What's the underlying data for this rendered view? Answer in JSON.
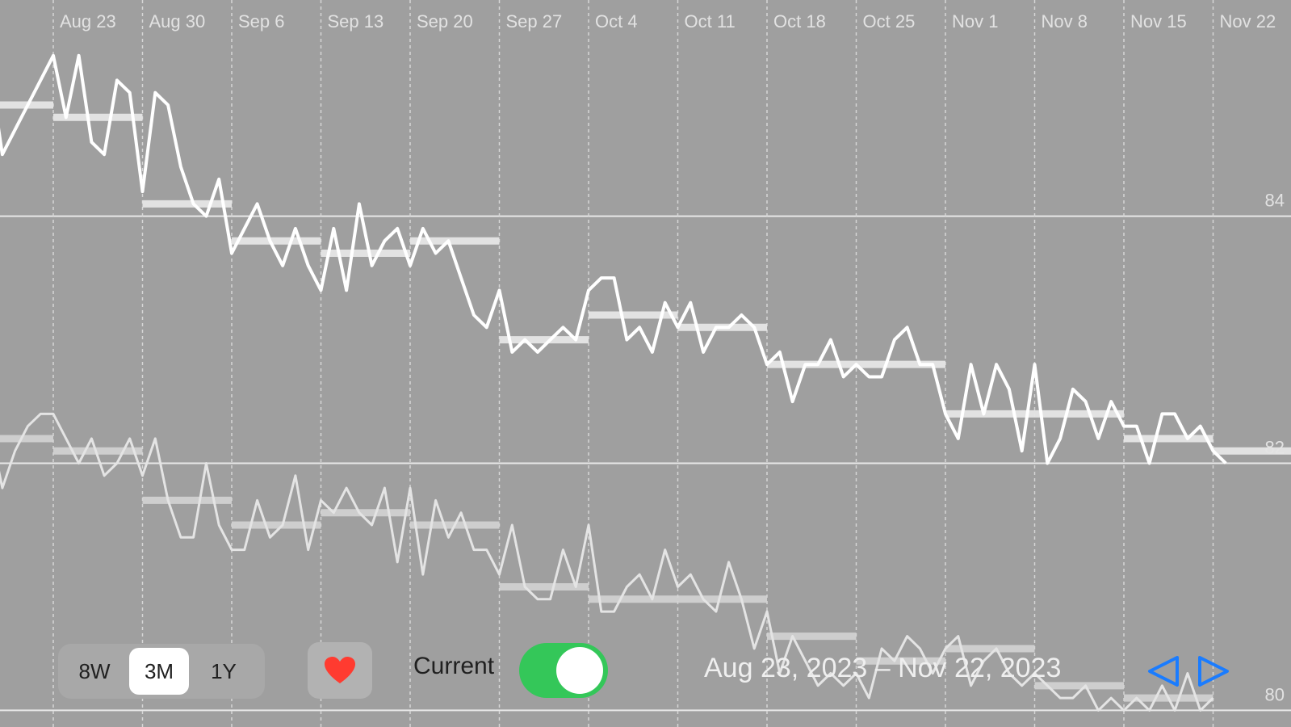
{
  "chart_data": {
    "type": "line",
    "x_tick_labels": [
      "Aug 23",
      "Aug 30",
      "Sep 6",
      "Sep 13",
      "Sep 20",
      "Sep 27",
      "Oct 4",
      "Oct 11",
      "Oct 18",
      "Oct 25",
      "Nov 1",
      "Nov 8",
      "Nov 15",
      "Nov 22"
    ],
    "y_tick_labels": [
      "84",
      "82",
      "80"
    ],
    "y_ticks": [
      84,
      82,
      80
    ],
    "ylim": [
      79.8,
      85.75
    ],
    "grid": true,
    "series": [
      {
        "style": "bright",
        "daily": [
          [
            "2023-08-18",
            85.2
          ],
          [
            "2023-08-19",
            84.5
          ],
          [
            "2023-08-20",
            84.7
          ],
          [
            "2023-08-21",
            84.9
          ],
          [
            "2023-08-22",
            85.1
          ],
          [
            "2023-08-23",
            85.3
          ],
          [
            "2023-08-24",
            84.8
          ],
          [
            "2023-08-25",
            85.3
          ],
          [
            "2023-08-26",
            84.6
          ],
          [
            "2023-08-27",
            84.5
          ],
          [
            "2023-08-28",
            85.1
          ],
          [
            "2023-08-29",
            85.0
          ],
          [
            "2023-08-30",
            84.2
          ],
          [
            "2023-08-31",
            85.0
          ],
          [
            "2023-09-01",
            84.9
          ],
          [
            "2023-09-02",
            84.4
          ],
          [
            "2023-09-03",
            84.1
          ],
          [
            "2023-09-04",
            84.0
          ],
          [
            "2023-09-05",
            84.3
          ],
          [
            "2023-09-06",
            83.7
          ],
          [
            "2023-09-07",
            83.9
          ],
          [
            "2023-09-08",
            84.1
          ],
          [
            "2023-09-09",
            83.8
          ],
          [
            "2023-09-10",
            83.6
          ],
          [
            "2023-09-11",
            83.9
          ],
          [
            "2023-09-12",
            83.6
          ],
          [
            "2023-09-13",
            83.4
          ],
          [
            "2023-09-14",
            83.9
          ],
          [
            "2023-09-15",
            83.4
          ],
          [
            "2023-09-16",
            84.1
          ],
          [
            "2023-09-17",
            83.6
          ],
          [
            "2023-09-18",
            83.8
          ],
          [
            "2023-09-19",
            83.9
          ],
          [
            "2023-09-20",
            83.6
          ],
          [
            "2023-09-21",
            83.9
          ],
          [
            "2023-09-22",
            83.7
          ],
          [
            "2023-09-23",
            83.8
          ],
          [
            "2023-09-24",
            83.5
          ],
          [
            "2023-09-25",
            83.2
          ],
          [
            "2023-09-26",
            83.1
          ],
          [
            "2023-09-27",
            83.4
          ],
          [
            "2023-09-28",
            82.9
          ],
          [
            "2023-09-29",
            83.0
          ],
          [
            "2023-09-30",
            82.9
          ],
          [
            "2023-10-01",
            83.0
          ],
          [
            "2023-10-02",
            83.1
          ],
          [
            "2023-10-03",
            83.0
          ],
          [
            "2023-10-04",
            83.4
          ],
          [
            "2023-10-05",
            83.5
          ],
          [
            "2023-10-06",
            83.5
          ],
          [
            "2023-10-07",
            83.0
          ],
          [
            "2023-10-08",
            83.1
          ],
          [
            "2023-10-09",
            82.9
          ],
          [
            "2023-10-10",
            83.3
          ],
          [
            "2023-10-11",
            83.1
          ],
          [
            "2023-10-12",
            83.3
          ],
          [
            "2023-10-13",
            82.9
          ],
          [
            "2023-10-14",
            83.1
          ],
          [
            "2023-10-15",
            83.1
          ],
          [
            "2023-10-16",
            83.2
          ],
          [
            "2023-10-17",
            83.1
          ],
          [
            "2023-10-18",
            82.8
          ],
          [
            "2023-10-19",
            82.9
          ],
          [
            "2023-10-20",
            82.5
          ],
          [
            "2023-10-21",
            82.8
          ],
          [
            "2023-10-22",
            82.8
          ],
          [
            "2023-10-23",
            83.0
          ],
          [
            "2023-10-24",
            82.7
          ],
          [
            "2023-10-25",
            82.8
          ],
          [
            "2023-10-26",
            82.7
          ],
          [
            "2023-10-27",
            82.7
          ],
          [
            "2023-10-28",
            83.0
          ],
          [
            "2023-10-29",
            83.1
          ],
          [
            "2023-10-30",
            82.8
          ],
          [
            "2023-10-31",
            82.8
          ],
          [
            "2023-11-01",
            82.4
          ],
          [
            "2023-11-02",
            82.2
          ],
          [
            "2023-11-03",
            82.8
          ],
          [
            "2023-11-04",
            82.4
          ],
          [
            "2023-11-05",
            82.8
          ],
          [
            "2023-11-06",
            82.6
          ],
          [
            "2023-11-07",
            82.1
          ],
          [
            "2023-11-08",
            82.8
          ],
          [
            "2023-11-09",
            82.0
          ],
          [
            "2023-11-10",
            82.2
          ],
          [
            "2023-11-11",
            82.6
          ],
          [
            "2023-11-12",
            82.5
          ],
          [
            "2023-11-13",
            82.2
          ],
          [
            "2023-11-14",
            82.5
          ],
          [
            "2023-11-15",
            82.3
          ],
          [
            "2023-11-16",
            82.3
          ],
          [
            "2023-11-17",
            82.0
          ],
          [
            "2023-11-18",
            82.4
          ],
          [
            "2023-11-19",
            82.4
          ],
          [
            "2023-11-20",
            82.2
          ],
          [
            "2023-11-21",
            82.3
          ],
          [
            "2023-11-22",
            82.1
          ],
          [
            "2023-11-23",
            82.0
          ]
        ],
        "weekly_avg": [
          [
            "2023-08-16",
            "2023-08-23",
            84.9
          ],
          [
            "2023-08-23",
            "2023-08-30",
            84.8
          ],
          [
            "2023-08-30",
            "2023-09-06",
            84.1
          ],
          [
            "2023-09-06",
            "2023-09-13",
            83.8
          ],
          [
            "2023-09-13",
            "2023-09-20",
            83.7
          ],
          [
            "2023-09-20",
            "2023-09-27",
            83.8
          ],
          [
            "2023-09-27",
            "2023-10-04",
            83.0
          ],
          [
            "2023-10-04",
            "2023-10-11",
            83.2
          ],
          [
            "2023-10-11",
            "2023-10-18",
            83.1
          ],
          [
            "2023-10-18",
            "2023-10-25",
            82.8
          ],
          [
            "2023-10-25",
            "2023-11-01",
            82.8
          ],
          [
            "2023-11-01",
            "2023-11-08",
            82.4
          ],
          [
            "2023-11-08",
            "2023-11-15",
            82.4
          ],
          [
            "2023-11-15",
            "2023-11-22",
            82.2
          ],
          [
            "2023-11-22",
            "2023-11-29",
            82.1
          ]
        ]
      },
      {
        "style": "dim",
        "daily": [
          [
            "2023-08-17",
            82.2
          ],
          [
            "2023-08-18",
            82.3
          ],
          [
            "2023-08-19",
            81.8
          ],
          [
            "2023-08-20",
            82.1
          ],
          [
            "2023-08-21",
            82.3
          ],
          [
            "2023-08-22",
            82.4
          ],
          [
            "2023-08-23",
            82.4
          ],
          [
            "2023-08-24",
            82.2
          ],
          [
            "2023-08-25",
            82.0
          ],
          [
            "2023-08-26",
            82.2
          ],
          [
            "2023-08-27",
            81.9
          ],
          [
            "2023-08-28",
            82.0
          ],
          [
            "2023-08-29",
            82.2
          ],
          [
            "2023-08-30",
            81.9
          ],
          [
            "2023-08-31",
            82.2
          ],
          [
            "2023-09-01",
            81.7
          ],
          [
            "2023-09-02",
            81.4
          ],
          [
            "2023-09-03",
            81.4
          ],
          [
            "2023-09-04",
            82.0
          ],
          [
            "2023-09-05",
            81.5
          ],
          [
            "2023-09-06",
            81.3
          ],
          [
            "2023-09-07",
            81.3
          ],
          [
            "2023-09-08",
            81.7
          ],
          [
            "2023-09-09",
            81.4
          ],
          [
            "2023-09-10",
            81.5
          ],
          [
            "2023-09-11",
            81.9
          ],
          [
            "2023-09-12",
            81.3
          ],
          [
            "2023-09-13",
            81.7
          ],
          [
            "2023-09-14",
            81.6
          ],
          [
            "2023-09-15",
            81.8
          ],
          [
            "2023-09-16",
            81.6
          ],
          [
            "2023-09-17",
            81.5
          ],
          [
            "2023-09-18",
            81.8
          ],
          [
            "2023-09-19",
            81.2
          ],
          [
            "2023-09-20",
            81.8
          ],
          [
            "2023-09-21",
            81.1
          ],
          [
            "2023-09-22",
            81.7
          ],
          [
            "2023-09-23",
            81.4
          ],
          [
            "2023-09-24",
            81.6
          ],
          [
            "2023-09-25",
            81.3
          ],
          [
            "2023-09-26",
            81.3
          ],
          [
            "2023-09-27",
            81.1
          ],
          [
            "2023-09-28",
            81.5
          ],
          [
            "2023-09-29",
            81.0
          ],
          [
            "2023-09-30",
            80.9
          ],
          [
            "2023-10-01",
            80.9
          ],
          [
            "2023-10-02",
            81.3
          ],
          [
            "2023-10-03",
            81.0
          ],
          [
            "2023-10-04",
            81.5
          ],
          [
            "2023-10-05",
            80.8
          ],
          [
            "2023-10-06",
            80.8
          ],
          [
            "2023-10-07",
            81.0
          ],
          [
            "2023-10-08",
            81.1
          ],
          [
            "2023-10-09",
            80.9
          ],
          [
            "2023-10-10",
            81.3
          ],
          [
            "2023-10-11",
            81.0
          ],
          [
            "2023-10-12",
            81.1
          ],
          [
            "2023-10-13",
            80.9
          ],
          [
            "2023-10-14",
            80.8
          ],
          [
            "2023-10-15",
            81.2
          ],
          [
            "2023-10-16",
            80.9
          ],
          [
            "2023-10-17",
            80.5
          ],
          [
            "2023-10-18",
            80.8
          ],
          [
            "2023-10-19",
            80.3
          ],
          [
            "2023-10-20",
            80.6
          ],
          [
            "2023-10-21",
            80.4
          ],
          [
            "2023-10-22",
            80.2
          ],
          [
            "2023-10-23",
            80.3
          ],
          [
            "2023-10-24",
            80.2
          ],
          [
            "2023-10-25",
            80.3
          ],
          [
            "2023-10-26",
            80.1
          ],
          [
            "2023-10-27",
            80.5
          ],
          [
            "2023-10-28",
            80.4
          ],
          [
            "2023-10-29",
            80.6
          ],
          [
            "2023-10-30",
            80.5
          ],
          [
            "2023-10-31",
            80.3
          ],
          [
            "2023-11-01",
            80.5
          ],
          [
            "2023-11-02",
            80.6
          ],
          [
            "2023-11-03",
            80.2
          ],
          [
            "2023-11-04",
            80.4
          ],
          [
            "2023-11-05",
            80.5
          ],
          [
            "2023-11-06",
            80.3
          ],
          [
            "2023-11-07",
            80.2
          ],
          [
            "2023-11-08",
            80.3
          ],
          [
            "2023-11-09",
            80.2
          ],
          [
            "2023-11-10",
            80.1
          ],
          [
            "2023-11-11",
            80.1
          ],
          [
            "2023-11-12",
            80.2
          ],
          [
            "2023-11-13",
            80.0
          ],
          [
            "2023-11-14",
            80.1
          ],
          [
            "2023-11-15",
            80.0
          ],
          [
            "2023-11-16",
            80.1
          ],
          [
            "2023-11-17",
            80.0
          ],
          [
            "2023-11-18",
            80.2
          ],
          [
            "2023-11-19",
            80.0
          ],
          [
            "2023-11-20",
            80.3
          ],
          [
            "2023-11-21",
            80.0
          ],
          [
            "2023-11-22",
            80.1
          ]
        ],
        "weekly_avg": [
          [
            "2023-08-16",
            "2023-08-23",
            82.2
          ],
          [
            "2023-08-23",
            "2023-08-30",
            82.1
          ],
          [
            "2023-08-30",
            "2023-09-06",
            81.7
          ],
          [
            "2023-09-06",
            "2023-09-13",
            81.5
          ],
          [
            "2023-09-13",
            "2023-09-20",
            81.6
          ],
          [
            "2023-09-20",
            "2023-09-27",
            81.5
          ],
          [
            "2023-09-27",
            "2023-10-04",
            81.0
          ],
          [
            "2023-10-04",
            "2023-10-11",
            80.9
          ],
          [
            "2023-10-11",
            "2023-10-18",
            80.9
          ],
          [
            "2023-10-18",
            "2023-10-25",
            80.6
          ],
          [
            "2023-10-25",
            "2023-11-01",
            80.4
          ],
          [
            "2023-11-01",
            "2023-11-08",
            80.5
          ],
          [
            "2023-11-08",
            "2023-11-15",
            80.2
          ],
          [
            "2023-11-15",
            "2023-11-22",
            80.1
          ]
        ]
      }
    ]
  },
  "toolbar": {
    "range_options": [
      {
        "label": "8W",
        "selected": false
      },
      {
        "label": "3M",
        "selected": true
      },
      {
        "label": "1Y",
        "selected": false
      }
    ],
    "heart_icon": "heart-icon",
    "heart_color": "#ff3b30",
    "current_label": "Current",
    "current_toggle_on": true,
    "toggle_color": "#34c759",
    "date_range": "Aug 23, 2023 – Nov 22, 2023",
    "nav_color": "#1a7cff",
    "prev_icon": "triangle-left-icon",
    "next_icon": "triangle-right-icon"
  }
}
